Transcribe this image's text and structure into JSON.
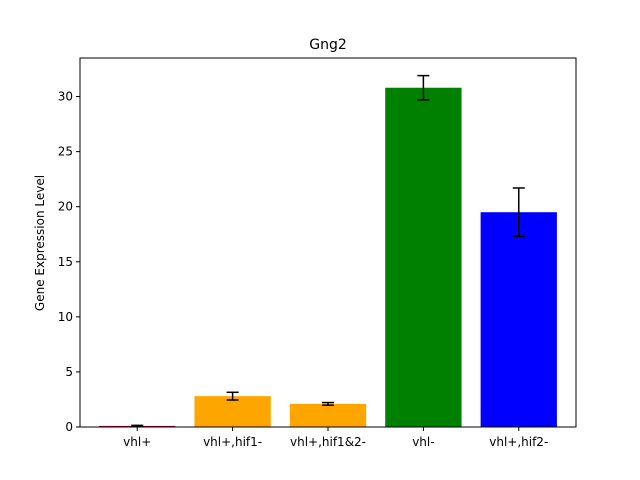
{
  "chart_data": {
    "type": "bar",
    "title": "Gng2",
    "xlabel": "",
    "ylabel": "Gene Expression Level",
    "categories": [
      "vhl+",
      "vhl+,hif1-",
      "vhl+,hif1&2-",
      "vhl-",
      "vhl+,hif2-"
    ],
    "values": [
      0.1,
      2.8,
      2.1,
      30.8,
      19.5
    ],
    "errors": [
      0.05,
      0.35,
      0.12,
      1.1,
      2.2
    ],
    "colors": [
      "#c0002a",
      "#ffa500",
      "#ffa500",
      "#008000",
      "#0000ff"
    ],
    "ylim": [
      0,
      33.5
    ],
    "yticks": [
      0,
      5,
      10,
      15,
      20,
      25,
      30
    ],
    "grid": false
  }
}
